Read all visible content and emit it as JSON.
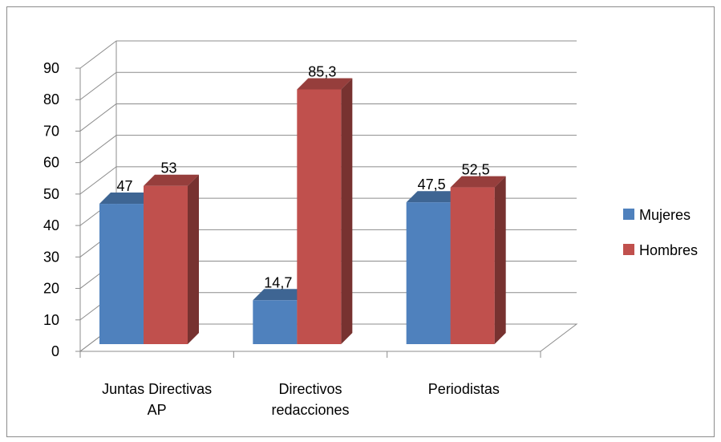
{
  "chart_data": {
    "type": "bar",
    "subtype": "3d-clustered-column",
    "title": "",
    "xlabel": "",
    "ylabel": "",
    "categories": [
      [
        "Juntas Directivas",
        "AP"
      ],
      [
        "Directivos",
        "redacciones"
      ],
      [
        "Periodistas"
      ]
    ],
    "series": [
      {
        "name": "Mujeres",
        "values": [
          47,
          14.7,
          47.5
        ],
        "labels": [
          "47",
          "14,7",
          "47,5"
        ],
        "color": "#4F81BD"
      },
      {
        "name": "Hombres",
        "values": [
          53,
          85.3,
          52.5
        ],
        "labels": [
          "53",
          "85,3",
          "52,5"
        ],
        "color": "#C0504D"
      }
    ],
    "ylim": [
      0,
      90
    ],
    "yticks": [
      "0",
      "10",
      "20",
      "30",
      "40",
      "50",
      "60",
      "70",
      "80",
      "90"
    ],
    "grid": true,
    "legend": "right"
  }
}
